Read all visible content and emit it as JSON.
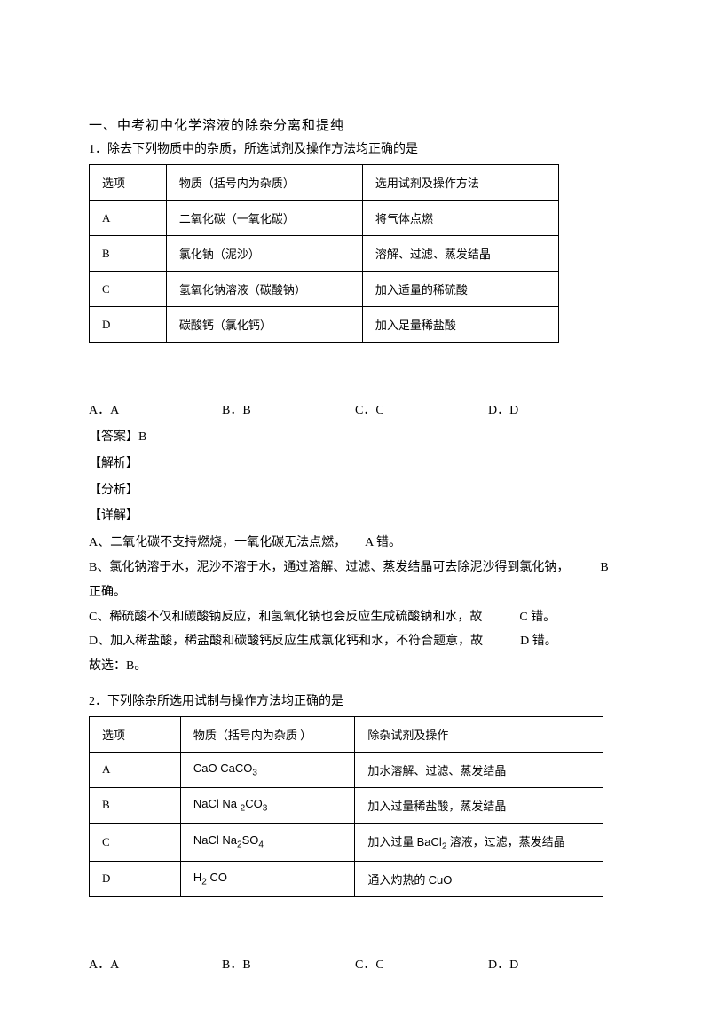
{
  "section": {
    "title": "一、中考初中化学溶液的除杂分离和提纯"
  },
  "q1": {
    "number": "1．",
    "stem": "除去下列物质中的杂质，所选试剂及操作方法均正确的是",
    "table": {
      "headers": [
        "选项",
        "物质（括号内为杂质）",
        "选用试剂及操作方法"
      ],
      "rows": [
        [
          "A",
          "二氧化碳（一氧化碳）",
          "将气体点燃"
        ],
        [
          "B",
          "氯化钠（泥沙）",
          "溶解、过滤、蒸发结晶"
        ],
        [
          "C",
          "氢氧化钠溶液（碳酸钠）",
          "加入适量的稀硫酸"
        ],
        [
          "D",
          "碳酸钙（氯化钙）",
          "加入足量稀盐酸"
        ]
      ]
    },
    "options": {
      "A": "A．A",
      "B": "B．B",
      "C": "C．C",
      "D": "D．D"
    },
    "answer": "【答案】B",
    "jiexi": "【解析】",
    "fenxi": "【分析】",
    "xiangjie": "【详解】",
    "details": {
      "A": "A、二氧化碳不支持燃烧，一氧化碳无法点燃，　　A 错。",
      "B": "B、氯化钠溶于水，泥沙不溶于水，通过溶解、过滤、蒸发结晶可去除泥沙得到氯化钠，　　　B",
      "B2": "正确。",
      "C": "C、稀硫酸不仅和碳酸钠反应，和氢氧化钠也会反应生成硫酸钠和水，故　　　C 错。",
      "D": "D、加入稀盐酸，稀盐酸和碳酸钙反应生成氯化钙和水，不符合题意，故　　　D 错。",
      "final": "故选：B。"
    }
  },
  "q2": {
    "number": "2．",
    "stem": "下列除杂所选用试制与操作方法均正确的是",
    "table": {
      "headers": [
        "选项",
        "物质（括号内为杂质  ）",
        "除杂试剂及操作"
      ],
      "rows": [
        [
          "A",
          "CaO CaCO₃",
          "加水溶解、过滤、蒸发结晶"
        ],
        [
          "B",
          "NaCl Na ₂CO₃",
          "加入过量稀盐酸，蒸发结晶"
        ],
        [
          "C",
          "NaCl  Na₂SO₄",
          "加入过量 BaCl₂ 溶液，过滤，蒸发结晶"
        ],
        [
          "D",
          "H₂  CO",
          "通入灼热的 CuO"
        ]
      ]
    },
    "options": {
      "A": "A．A",
      "B": "B．B",
      "C": "C．C",
      "D": "D．D"
    }
  }
}
